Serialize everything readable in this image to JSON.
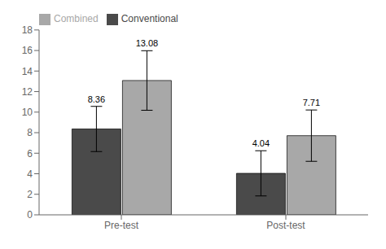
{
  "chart_data": {
    "type": "bar",
    "categories": [
      "Pre-test",
      "Post-test"
    ],
    "series": [
      {
        "name": "Conventional",
        "color": "#4a4a4a",
        "values": [
          8.36,
          4.04
        ],
        "errors": [
          2.2,
          2.2
        ]
      },
      {
        "name": "Combined",
        "color": "#a8a8a8",
        "values": [
          13.08,
          7.71
        ],
        "errors": [
          2.9,
          2.5
        ]
      }
    ],
    "ylim": [
      0,
      18
    ],
    "yticks": [
      0,
      2,
      4,
      6,
      8,
      10,
      12,
      14,
      16,
      18
    ],
    "legend": "upper left",
    "data_labels": true,
    "grid": false
  }
}
